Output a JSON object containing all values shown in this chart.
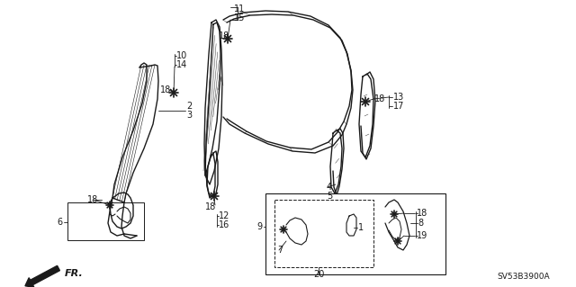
{
  "bg_color": "#ffffff",
  "line_color": "#1a1a1a",
  "part_number": "SV53B3900A",
  "fig_w": 6.4,
  "fig_h": 3.19,
  "dpi": 100
}
